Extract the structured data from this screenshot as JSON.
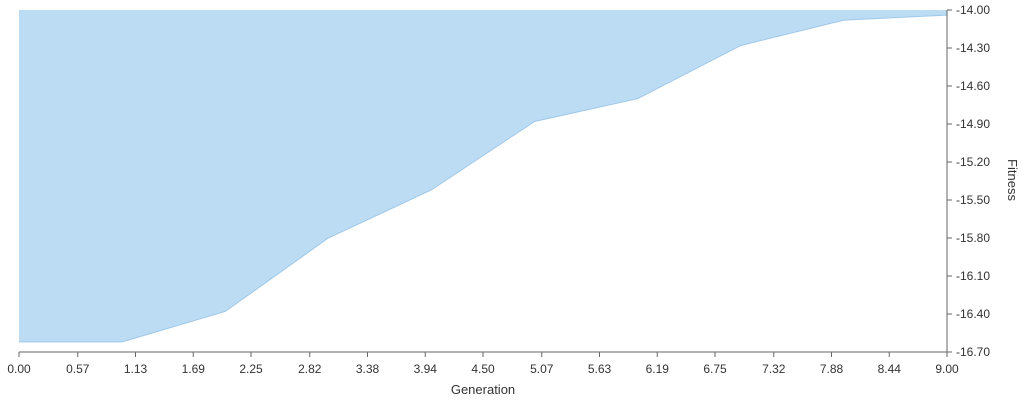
{
  "chart_data": {
    "type": "area",
    "title": "",
    "xlabel": "Generation",
    "ylabel": "Fitness",
    "x": [
      0,
      1,
      2,
      3,
      4,
      5,
      6,
      7,
      8,
      9
    ],
    "series": [
      {
        "values": [
          -16.62,
          -16.62,
          -16.38,
          -15.8,
          -15.42,
          -14.88,
          -14.7,
          -14.28,
          -14.08,
          -14.04
        ]
      }
    ],
    "xlim": [
      0,
      9
    ],
    "ylim": [
      -16.7,
      -14.0
    ],
    "x_ticks": [
      "0.00",
      "0.57",
      "1.13",
      "1.69",
      "2.25",
      "2.82",
      "3.38",
      "3.94",
      "4.50",
      "5.07",
      "5.63",
      "6.19",
      "6.75",
      "7.32",
      "7.88",
      "8.44",
      "9.00"
    ],
    "y_ticks": [
      "-14.00",
      "-14.30",
      "-14.60",
      "-14.90",
      "-15.20",
      "-15.50",
      "-15.80",
      "-16.10",
      "-16.40",
      "-16.70"
    ],
    "y_axis_position": "right",
    "grid": false,
    "legend": "none",
    "colors": {
      "area_fill": "#bcdcf3",
      "area_stroke": "#9ec8ea",
      "axis": "#666666",
      "text": "#333333"
    }
  }
}
